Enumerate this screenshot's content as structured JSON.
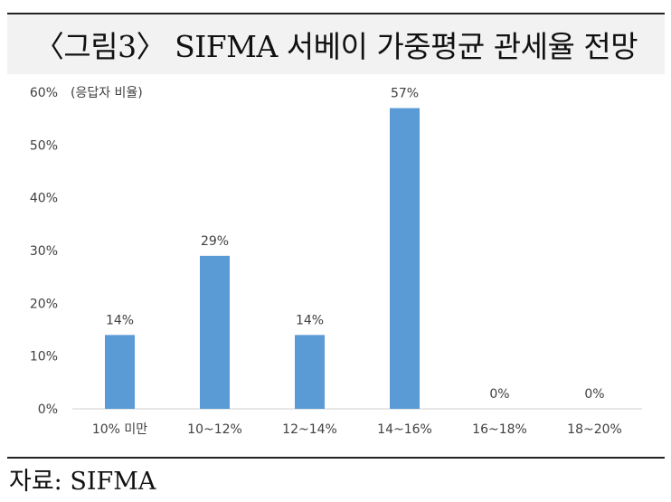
{
  "title": "〈그림3〉 SIFMA 서베이 가중평균 관세율 전망",
  "source": "자료: SIFMA",
  "chart_data": {
    "type": "bar",
    "unit_note": "(응답자 비율)",
    "categories": [
      "10% 미만",
      "10~12%",
      "12~14%",
      "14~16%",
      "16~18%",
      "18~20%"
    ],
    "values": [
      14,
      29,
      14,
      57,
      0,
      0
    ],
    "data_labels": [
      "14%",
      "29%",
      "14%",
      "57%",
      "0%",
      "0%"
    ],
    "y_ticks": [
      "0%",
      "10%",
      "20%",
      "30%",
      "40%",
      "50%",
      "60%"
    ],
    "ylim": [
      0,
      60
    ],
    "bar_color": "#5b9bd5",
    "grid": false,
    "legend": "none"
  }
}
